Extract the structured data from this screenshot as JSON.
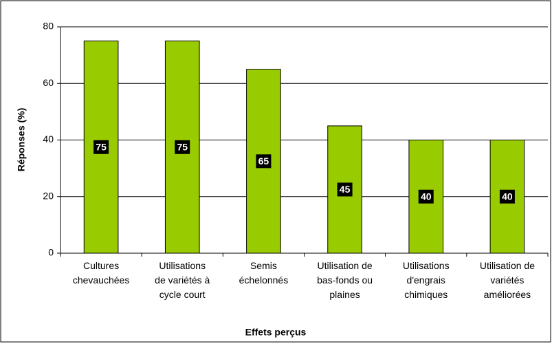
{
  "chart_data": {
    "type": "bar",
    "x_label": "Effets perçus",
    "y_label": "Réponses (%)",
    "categories": [
      "Cultures\nchevauchées",
      "Utilisations\nde variétés à\ncycle court",
      "Semis\néchelonnés",
      "Utilisation de\nbas-fonds ou\nplaines",
      "Utilisations\nd'engrais\nchimiques",
      "Utilisation de\nvariétés\naméliorées"
    ],
    "values": [
      75,
      75,
      65,
      45,
      40,
      40
    ],
    "color": "#99cc00",
    "ylim": [
      0,
      80
    ],
    "yticks": [
      0,
      20,
      40,
      60,
      80
    ],
    "grid": true
  }
}
